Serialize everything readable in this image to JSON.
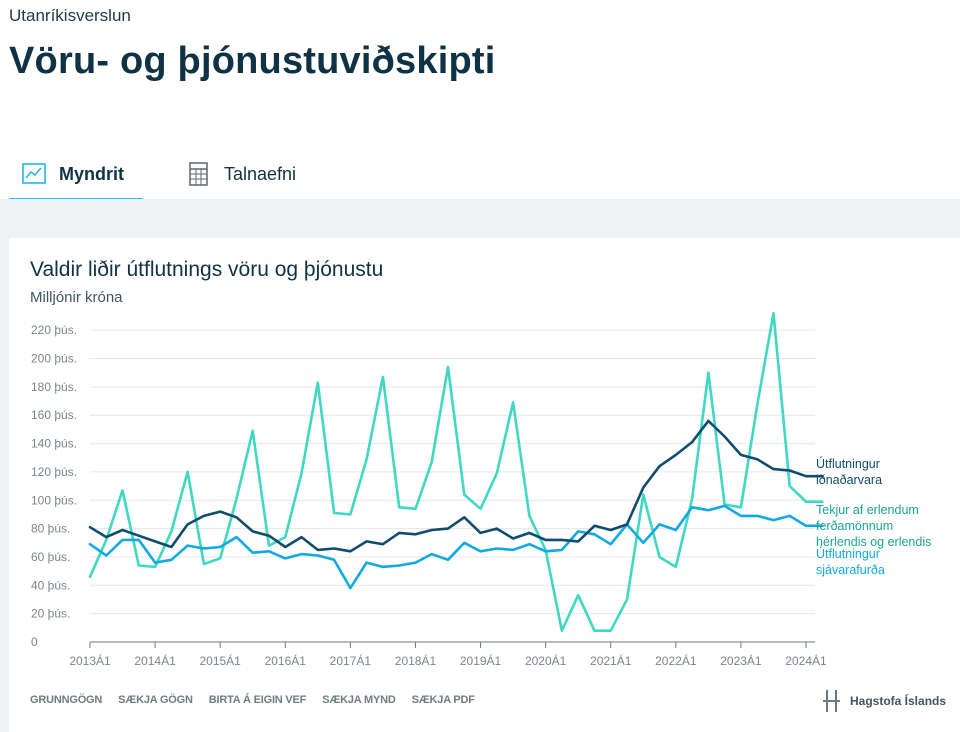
{
  "breadcrumb": "Utanríkisverslun",
  "page_title": "Vöru- og þjónustuviðskipti",
  "tabs": [
    {
      "label": "Myndrit",
      "icon": "line-chart-icon",
      "active": true
    },
    {
      "label": "Talnaefni",
      "icon": "spreadsheet-icon",
      "active": false
    }
  ],
  "footer": {
    "links": [
      "GRUNNGÖGN",
      "SÆKJA GÖGN",
      "BIRTA Á EIGIN VEF",
      "SÆKJA MYND",
      "SÆKJA PDF"
    ],
    "brand": "Hagstofa Íslands",
    "brand_icon": "hagstofa-logo-icon"
  },
  "colors": {
    "accent_tab": "#27b6e6",
    "industry": "#0f4c6e",
    "tourism": "#3fd9c1",
    "marine": "#10a9e2",
    "tourism_label": "#1aa58f"
  },
  "chart_data": {
    "type": "line",
    "title": "Valdir liðir útflutnings vöru og þjónustu",
    "subtitle": "Milljónir króna",
    "x_tick_labels": [
      "2013Á1",
      "2014Á1",
      "2015Á1",
      "2016Á1",
      "2017Á1",
      "2018Á1",
      "2019Á1",
      "2020Á1",
      "2021Á1",
      "2022Á1",
      "2023Á1",
      "2024Á1"
    ],
    "x_count": 46,
    "ylim": [
      0,
      230000
    ],
    "yticks": [
      0,
      20000,
      40000,
      60000,
      80000,
      100000,
      120000,
      140000,
      160000,
      180000,
      200000,
      220000
    ],
    "ytick_labels": [
      "0",
      "20 þús.",
      "40 þús.",
      "60 þús.",
      "80 þús.",
      "100 þús.",
      "120 þús.",
      "140 þús.",
      "160 þús.",
      "180 þús.",
      "200 þús.",
      "220 þús."
    ],
    "grid": true,
    "legend": "right, inline at line ends",
    "series": [
      {
        "name": "Útflutningur iðnaðarvara",
        "label_lines": [
          "Útflutningur",
          "iðnaðarvara"
        ],
        "color": "#0f4c6e",
        "values": [
          81000,
          74000,
          79000,
          75000,
          71000,
          67000,
          83000,
          89000,
          92000,
          88000,
          78000,
          75000,
          67000,
          74000,
          65000,
          66000,
          64000,
          71000,
          69000,
          77000,
          76000,
          79000,
          80000,
          88000,
          77000,
          80000,
          73000,
          77000,
          72000,
          72000,
          71000,
          82000,
          79000,
          83000,
          109000,
          124000,
          132000,
          141000,
          156000,
          145000,
          132000,
          129000,
          122000,
          121000,
          117000,
          117000
        ]
      },
      {
        "name": "Tekjur af erlendum ferðamönnum hérlendis og erlendis",
        "label_lines": [
          "Tekjur af erlendum",
          "ferðamönnum",
          "hérlendis og erlendis"
        ],
        "color": "#3fd9c1",
        "values": [
          46000,
          72000,
          107000,
          54000,
          53000,
          78000,
          120000,
          55000,
          59000,
          101000,
          149000,
          68000,
          74000,
          119000,
          183000,
          91000,
          90000,
          129000,
          187000,
          95000,
          94000,
          127000,
          194000,
          104000,
          94000,
          119000,
          169000,
          89000,
          65000,
          8000,
          33000,
          8000,
          8000,
          30000,
          104000,
          60000,
          53000,
          101000,
          190000,
          97000,
          95000,
          167000,
          232000,
          110000,
          99000,
          99000
        ]
      },
      {
        "name": "Útflutningur sjávarafurða",
        "label_lines": [
          "Útflutningur",
          "sjávarafurða"
        ],
        "color": "#10a9e2",
        "values": [
          69000,
          61000,
          72000,
          72000,
          56000,
          58000,
          68000,
          66000,
          67000,
          74000,
          63000,
          64000,
          59000,
          62000,
          61000,
          58000,
          38000,
          56000,
          53000,
          54000,
          56000,
          62000,
          58000,
          70000,
          64000,
          66000,
          65000,
          69000,
          64000,
          65000,
          78000,
          76000,
          69000,
          83000,
          70000,
          83000,
          79000,
          95000,
          93000,
          96000,
          89000,
          89000,
          86000,
          89000,
          82000,
          82000
        ]
      }
    ]
  }
}
